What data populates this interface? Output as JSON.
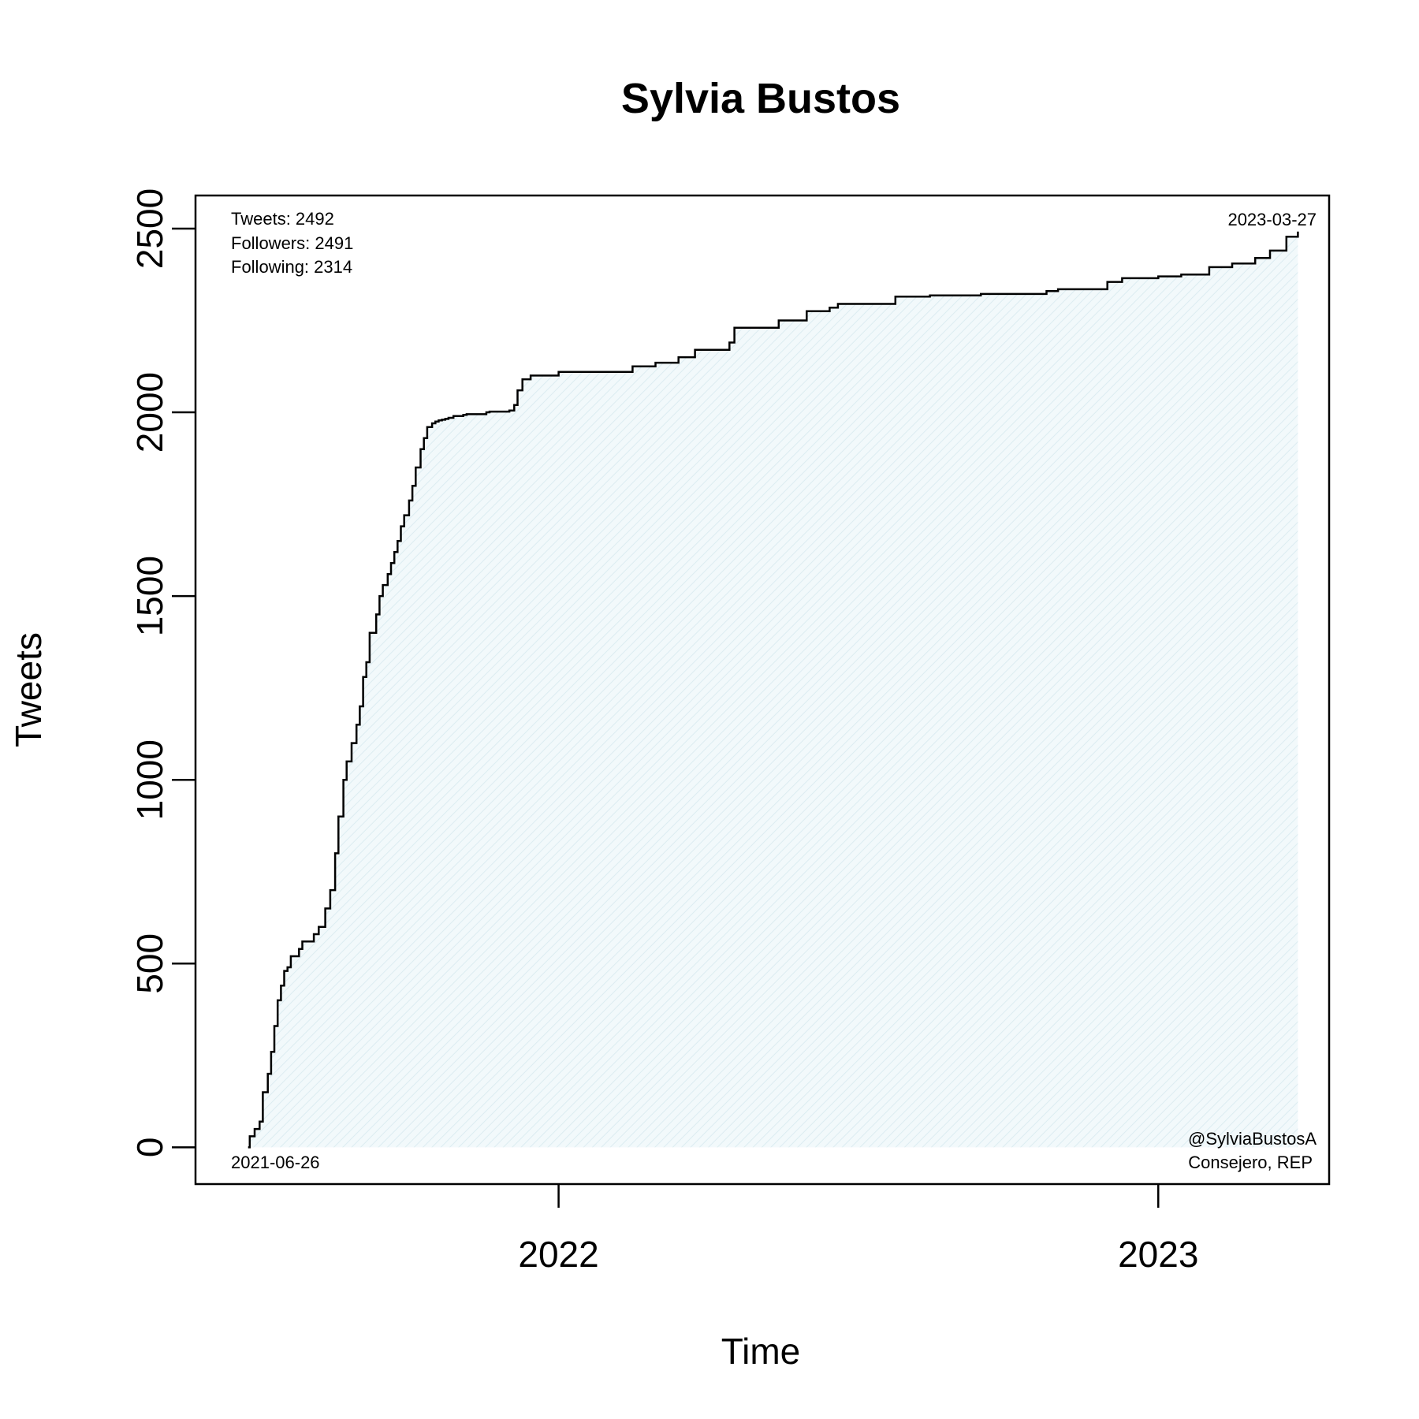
{
  "chart_data": {
    "type": "line",
    "title": "Sylvia Bustos",
    "xlabel": "Time",
    "ylabel": "Tweets",
    "x_start": "2021-06-26",
    "x_end": "2023-03-27",
    "xlim": [
      "2021-05-25",
      "2023-04-15"
    ],
    "ylim": [
      -100,
      2590
    ],
    "x_ticks": [
      {
        "date": "2022-01-01",
        "label": "2022"
      },
      {
        "date": "2023-01-01",
        "label": "2023"
      }
    ],
    "y_ticks": [
      0,
      500,
      1000,
      1500,
      2000,
      2500
    ],
    "grid": false,
    "fill_color": "#eaf4f7",
    "line_color": "#000000",
    "series": [
      {
        "x": [
          "2021-06-26",
          "2021-06-27",
          "2021-06-30",
          "2021-07-03",
          "2021-07-05",
          "2021-07-08",
          "2021-07-10",
          "2021-07-12",
          "2021-07-14",
          "2021-07-16",
          "2021-07-18",
          "2021-07-20",
          "2021-07-22",
          "2021-07-27",
          "2021-07-29",
          "2021-08-05",
          "2021-08-08",
          "2021-08-12",
          "2021-08-15",
          "2021-08-18",
          "2021-08-20",
          "2021-08-23",
          "2021-08-25",
          "2021-08-28",
          "2021-08-31",
          "2021-09-02",
          "2021-09-04",
          "2021-09-06",
          "2021-09-08",
          "2021-09-12",
          "2021-09-14",
          "2021-09-16",
          "2021-09-19",
          "2021-09-21",
          "2021-09-23",
          "2021-09-25",
          "2021-09-27",
          "2021-09-29",
          "2021-10-02",
          "2021-10-04",
          "2021-10-06",
          "2021-10-09",
          "2021-10-11",
          "2021-10-13",
          "2021-10-16",
          "2021-10-18",
          "2021-10-20",
          "2021-10-22",
          "2021-10-24",
          "2021-10-26",
          "2021-10-29",
          "2021-11-04",
          "2021-11-06",
          "2021-11-18",
          "2021-11-20",
          "2021-12-02",
          "2021-12-05",
          "2021-12-07",
          "2021-12-10",
          "2021-12-15",
          "2022-01-01",
          "2022-02-15",
          "2022-03-01",
          "2022-03-15",
          "2022-03-25",
          "2022-04-15",
          "2022-04-18",
          "2022-05-15",
          "2022-06-01",
          "2022-06-15",
          "2022-06-20",
          "2022-07-25",
          "2022-08-15",
          "2022-09-15",
          "2022-10-25",
          "2022-11-01",
          "2022-12-01",
          "2022-12-10",
          "2023-01-01",
          "2023-01-15",
          "2023-02-01",
          "2023-02-15",
          "2023-03-01",
          "2023-03-10",
          "2023-03-20",
          "2023-03-27"
        ],
        "y": [
          0,
          30,
          50,
          70,
          150,
          200,
          260,
          330,
          400,
          440,
          480,
          490,
          520,
          540,
          560,
          580,
          600,
          650,
          700,
          800,
          900,
          1000,
          1050,
          1100,
          1150,
          1200,
          1280,
          1320,
          1400,
          1450,
          1500,
          1530,
          1560,
          1590,
          1620,
          1650,
          1690,
          1720,
          1760,
          1800,
          1850,
          1900,
          1930,
          1960,
          1970,
          1975,
          1978,
          1980,
          1982,
          1985,
          1990,
          1993,
          1995,
          2000,
          2002,
          2005,
          2020,
          2060,
          2090,
          2100,
          2110,
          2125,
          2135,
          2150,
          2170,
          2190,
          2230,
          2250,
          2275,
          2285,
          2295,
          2315,
          2318,
          2322,
          2330,
          2335,
          2355,
          2365,
          2370,
          2375,
          2395,
          2405,
          2420,
          2440,
          2478,
          2492
        ]
      }
    ],
    "annotations": {
      "top_left": [
        "Tweets: 2492",
        "Followers: 2491",
        "Following: 2314"
      ],
      "top_right": "2023-03-27",
      "bottom_left": "2021-06-26",
      "bottom_right": [
        "@SylviaBustosA",
        "Consejero, REP"
      ]
    }
  }
}
